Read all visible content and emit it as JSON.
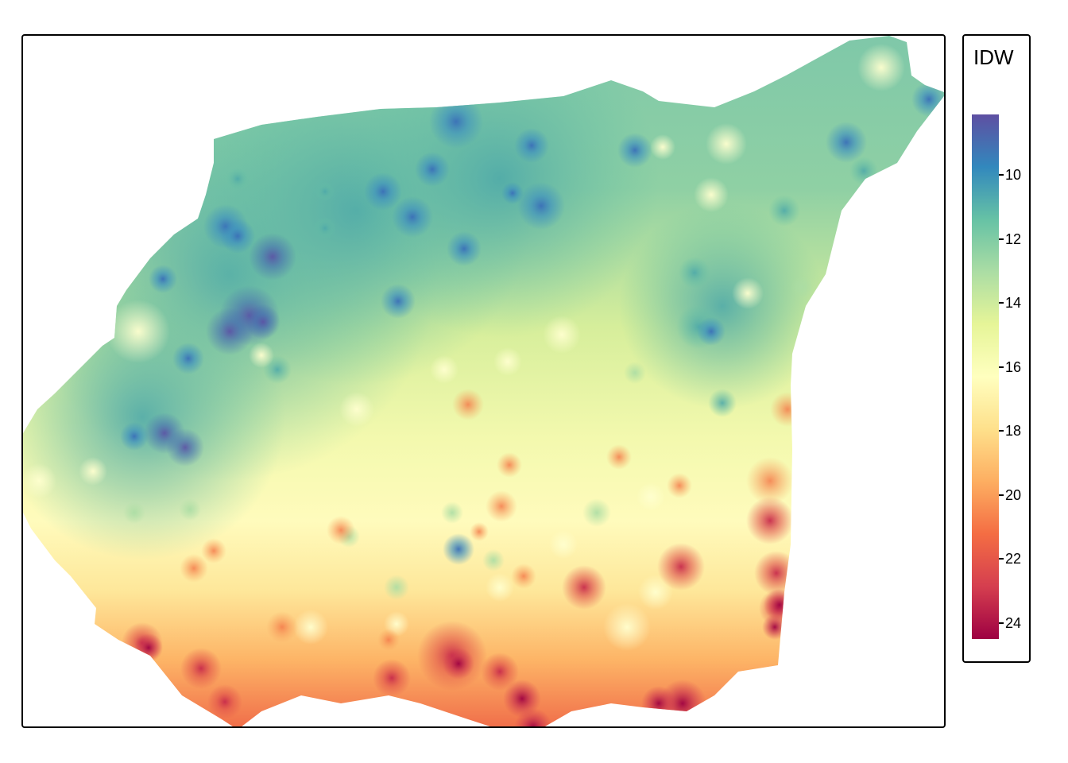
{
  "legend": {
    "title": "IDW",
    "ticks": [
      {
        "value": 10,
        "label": "10"
      },
      {
        "value": 12,
        "label": "12"
      },
      {
        "value": 14,
        "label": "14"
      },
      {
        "value": 16,
        "label": "16"
      },
      {
        "value": 18,
        "label": "18"
      },
      {
        "value": 20,
        "label": "20"
      },
      {
        "value": 22,
        "label": "22"
      },
      {
        "value": 24,
        "label": "24"
      }
    ],
    "range": [
      8.1,
      24.5
    ],
    "palette": [
      "#5e4fa2",
      "#3288bd",
      "#66c2a5",
      "#abdda4",
      "#e6f598",
      "#ffffbf",
      "#fee08b",
      "#fdae61",
      "#f46d43",
      "#d53e4f",
      "#9e0142"
    ]
  }
}
